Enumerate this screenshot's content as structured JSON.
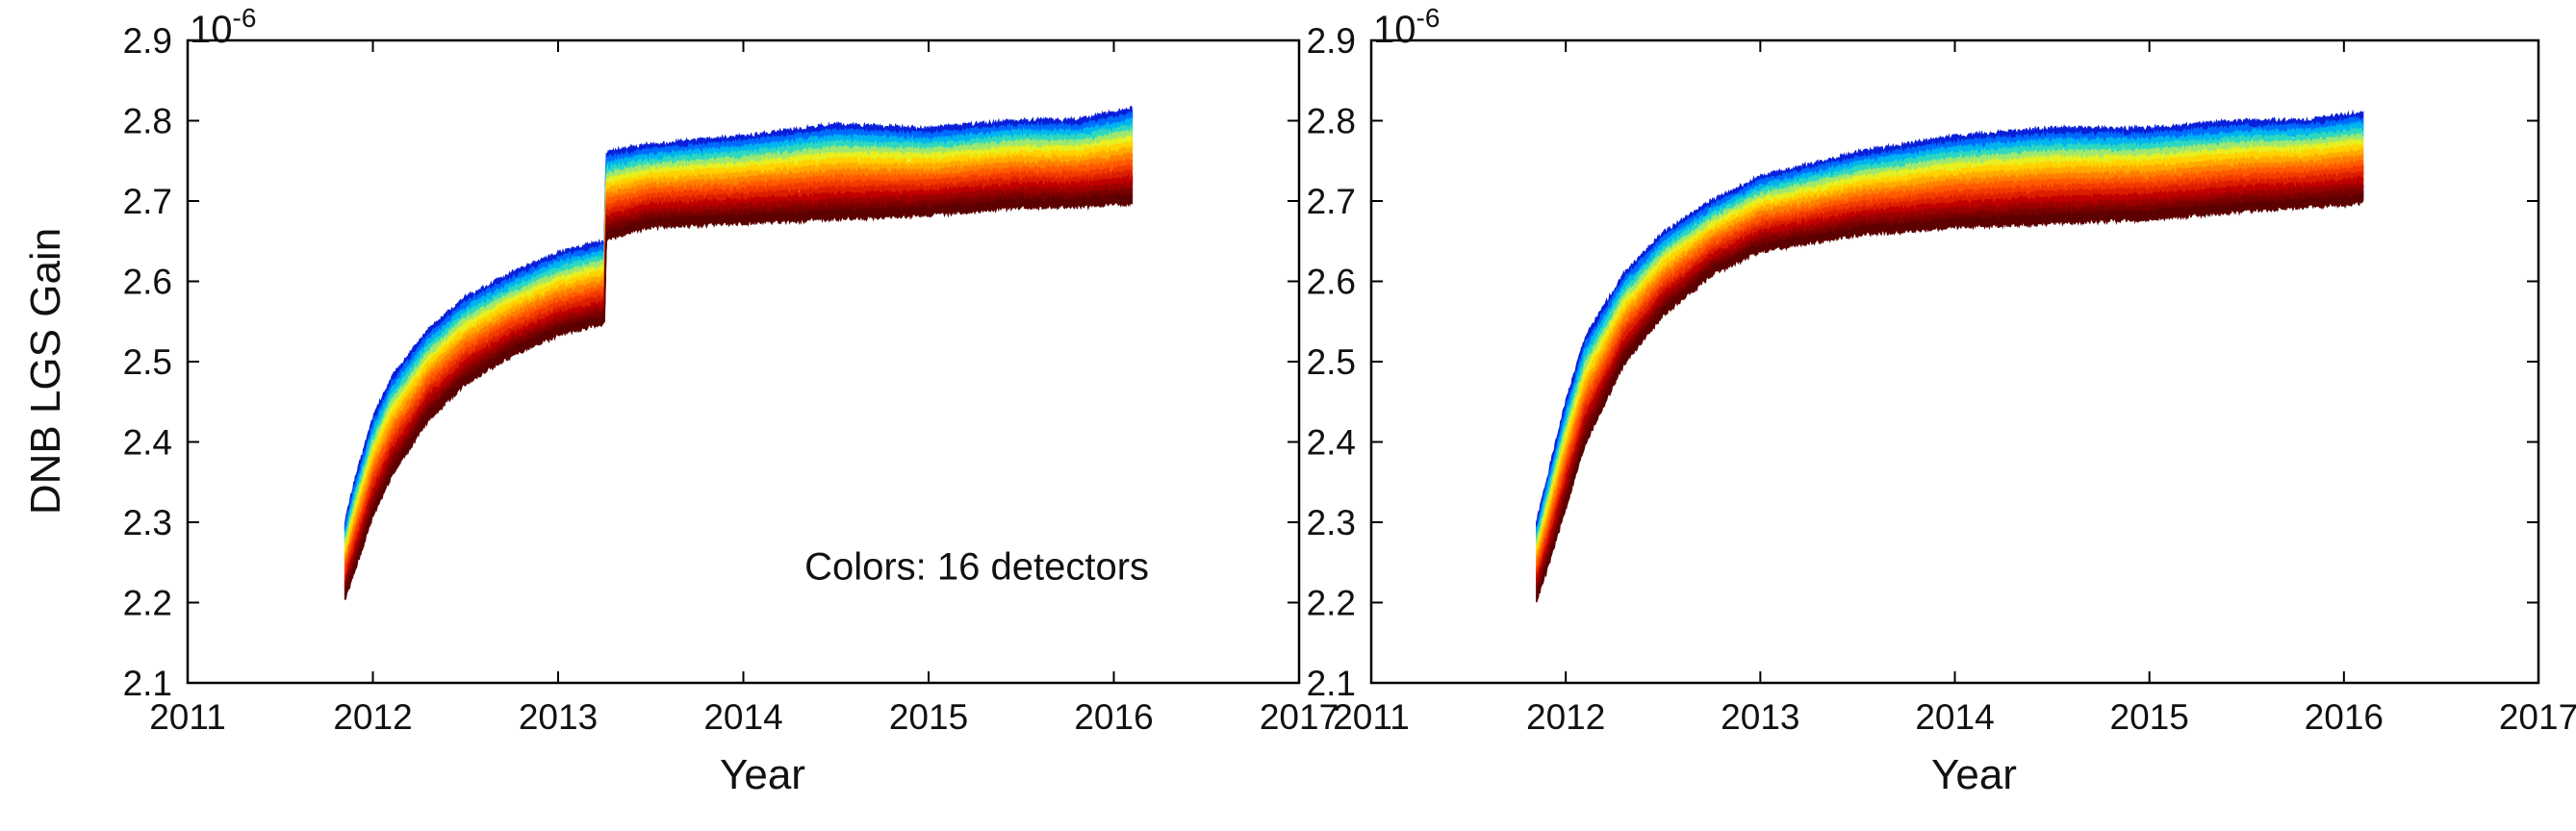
{
  "chart_data": [
    {
      "type": "scatter",
      "panel": "left",
      "title": "",
      "xlabel": "Year",
      "ylabel": "DNB LGS Gain",
      "y_multiplier_label": "10",
      "y_multiplier_exponent": "-6",
      "xlim": [
        2011,
        2017
      ],
      "ylim": [
        2.1,
        2.9
      ],
      "xticks": [
        2011,
        2012,
        2013,
        2014,
        2015,
        2016,
        2017
      ],
      "xtick_labels": [
        "2011",
        "2012",
        "2013",
        "2014",
        "2015",
        "2016",
        "2017"
      ],
      "yticks": [
        2.1,
        2.2,
        2.3,
        2.4,
        2.5,
        2.6,
        2.7,
        2.8,
        2.9
      ],
      "ytick_labels": [
        "2.1",
        "2.2",
        "2.3",
        "2.4",
        "2.5",
        "2.6",
        "2.7",
        "2.8",
        "2.9"
      ],
      "annotation": "Colors: 16 detectors",
      "detector_count": 16,
      "band": {
        "x": [
          2011.85,
          2011.9,
          2012.0,
          2012.1,
          2012.3,
          2012.5,
          2012.75,
          2013.0,
          2013.25,
          2013.26,
          2013.5,
          2014.0,
          2014.5,
          2015.0,
          2015.5,
          2015.8,
          2016.1
        ],
        "top": [
          2.3,
          2.35,
          2.43,
          2.48,
          2.54,
          2.58,
          2.61,
          2.635,
          2.65,
          2.76,
          2.77,
          2.78,
          2.795,
          2.79,
          2.8,
          2.8,
          2.815
        ],
        "bottom": [
          2.205,
          2.24,
          2.31,
          2.36,
          2.43,
          2.475,
          2.51,
          2.535,
          2.55,
          2.655,
          2.67,
          2.675,
          2.68,
          2.685,
          2.695,
          2.695,
          2.7
        ]
      },
      "colors": [
        "#0a1fd8",
        "#006aff",
        "#00b4f0",
        "#2ed8c0",
        "#9ee870",
        "#e8f020",
        "#ffd200",
        "#ffaa00",
        "#ff8000",
        "#ff5a00",
        "#f23a00",
        "#dc1e00",
        "#c00000",
        "#9a0000",
        "#780000",
        "#5c0000"
      ]
    },
    {
      "type": "scatter",
      "panel": "right",
      "title": "",
      "xlabel": "Year",
      "ylabel": "",
      "y_multiplier_label": "10",
      "y_multiplier_exponent": "-6",
      "xlim": [
        2011,
        2017
      ],
      "ylim": [
        2.1,
        2.9
      ],
      "xticks": [
        2011,
        2012,
        2013,
        2014,
        2015,
        2016,
        2017
      ],
      "xtick_labels": [
        "2011",
        "2012",
        "2013",
        "2014",
        "2015",
        "2016",
        "2017"
      ],
      "yticks": [
        2.1,
        2.2,
        2.3,
        2.4,
        2.5,
        2.6,
        2.7,
        2.8,
        2.9
      ],
      "ytick_labels": [
        "2.1",
        "2.2",
        "2.3",
        "2.4",
        "2.5",
        "2.6",
        "2.7",
        "2.8",
        "2.9"
      ],
      "detector_count": 16,
      "band": {
        "x": [
          2011.85,
          2011.9,
          2012.0,
          2012.1,
          2012.3,
          2012.5,
          2012.75,
          2013.0,
          2013.5,
          2014.0,
          2014.5,
          2015.0,
          2015.5,
          2015.8,
          2016.1
        ],
        "top": [
          2.3,
          2.35,
          2.45,
          2.53,
          2.61,
          2.66,
          2.7,
          2.73,
          2.76,
          2.78,
          2.79,
          2.79,
          2.8,
          2.8,
          2.81
        ],
        "bottom": [
          2.205,
          2.24,
          2.32,
          2.4,
          2.5,
          2.56,
          2.61,
          2.64,
          2.66,
          2.67,
          2.675,
          2.68,
          2.69,
          2.695,
          2.7
        ]
      },
      "colors": [
        "#0a1fd8",
        "#006aff",
        "#00b4f0",
        "#2ed8c0",
        "#9ee870",
        "#e8f020",
        "#ffd200",
        "#ffaa00",
        "#ff8000",
        "#ff5a00",
        "#f23a00",
        "#dc1e00",
        "#c00000",
        "#9a0000",
        "#780000",
        "#5c0000"
      ]
    }
  ]
}
